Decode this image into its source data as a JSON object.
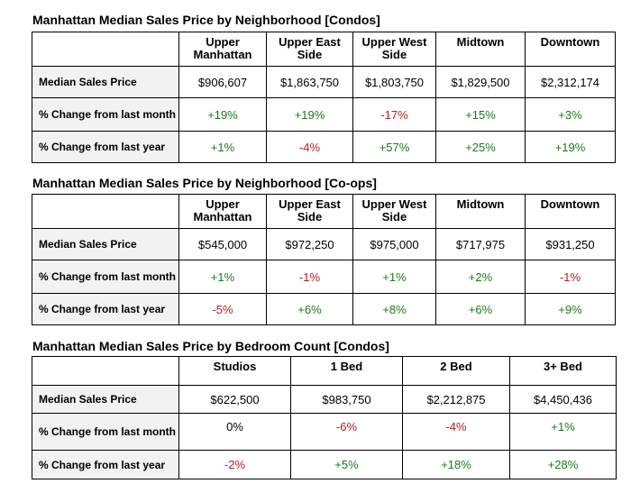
{
  "tables": [
    {
      "title": "Manhattan Median Sales Price by Neighborhood [Condos]",
      "columns": [
        "Upper Manhattan",
        "Upper East Side",
        "Upper West Side",
        "Midtown",
        "Downtown"
      ],
      "rows": [
        {
          "label": "Median Sales Price",
          "values": [
            "$906,607",
            "$1,863,750",
            "$1,803,750",
            "$1,829,500",
            "$2,312,174"
          ]
        },
        {
          "label": "% Change from last month",
          "values": [
            "+19%",
            "+19%",
            "-17%",
            "+15%",
            "+3%"
          ]
        },
        {
          "label": "% Change from last year",
          "values": [
            "+1%",
            "-4%",
            "+57%",
            "+25%",
            "+19%"
          ]
        }
      ]
    },
    {
      "title": "Manhattan Median Sales Price by Neighborhood [Co-ops]",
      "columns": [
        "Upper Manhattan",
        "Upper East Side",
        "Upper West Side",
        "Midtown",
        "Downtown"
      ],
      "rows": [
        {
          "label": "Median Sales Price",
          "values": [
            "$545,000",
            "$972,250",
            "$975,000",
            "$717,975",
            "$931,250"
          ]
        },
        {
          "label": "% Change from last month",
          "values": [
            "+1%",
            "-1%",
            "+1%",
            "+2%",
            "-1%"
          ]
        },
        {
          "label": "% Change from last year",
          "values": [
            "-5%",
            "+6%",
            "+8%",
            "+6%",
            "+9%"
          ]
        }
      ]
    },
    {
      "title": "Manhattan Median Sales Price by Bedroom Count [Condos]",
      "columns": [
        "Studios",
        "1 Bed",
        "2 Bed",
        "3+ Bed"
      ],
      "rows": [
        {
          "label": "Median Sales Price",
          "values": [
            "$622,500",
            "$983,750",
            "$2,212,875",
            "$4,450,436"
          ]
        },
        {
          "label": "% Change from last month",
          "values": [
            "0%",
            "-6%",
            "-4%",
            "+1%"
          ]
        },
        {
          "label": "% Change from last year",
          "values": [
            "-2%",
            "+5%",
            "+18%",
            "+28%"
          ]
        }
      ]
    }
  ],
  "colors": {
    "positive": "#1d7a1d",
    "negative": "#b81c1c",
    "label_bg": "#f2f2f2"
  }
}
